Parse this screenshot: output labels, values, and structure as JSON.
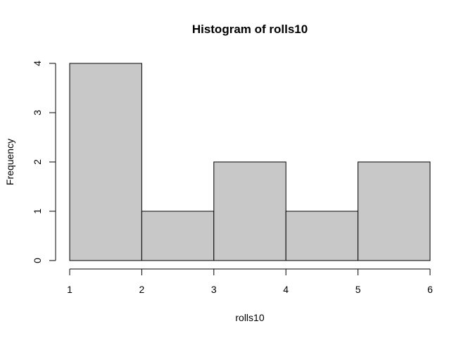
{
  "chart_data": {
    "type": "bar",
    "title": "Histogram of rolls10",
    "xlabel": "rolls10",
    "ylabel": "Frequency",
    "bins": [
      {
        "from": 1,
        "to": 2,
        "count": 4
      },
      {
        "from": 2,
        "to": 3,
        "count": 1
      },
      {
        "from": 3,
        "to": 4,
        "count": 2
      },
      {
        "from": 4,
        "to": 5,
        "count": 1
      },
      {
        "from": 5,
        "to": 6,
        "count": 2
      }
    ],
    "xticks": [
      1,
      2,
      3,
      4,
      5,
      6
    ],
    "yticks": [
      0,
      1,
      2,
      3,
      4
    ],
    "xlim": [
      1,
      6
    ],
    "ylim": [
      0,
      4
    ],
    "grid": false,
    "colors": {
      "bar_fill": "#c8c8c8",
      "bar_stroke": "#000000"
    }
  }
}
